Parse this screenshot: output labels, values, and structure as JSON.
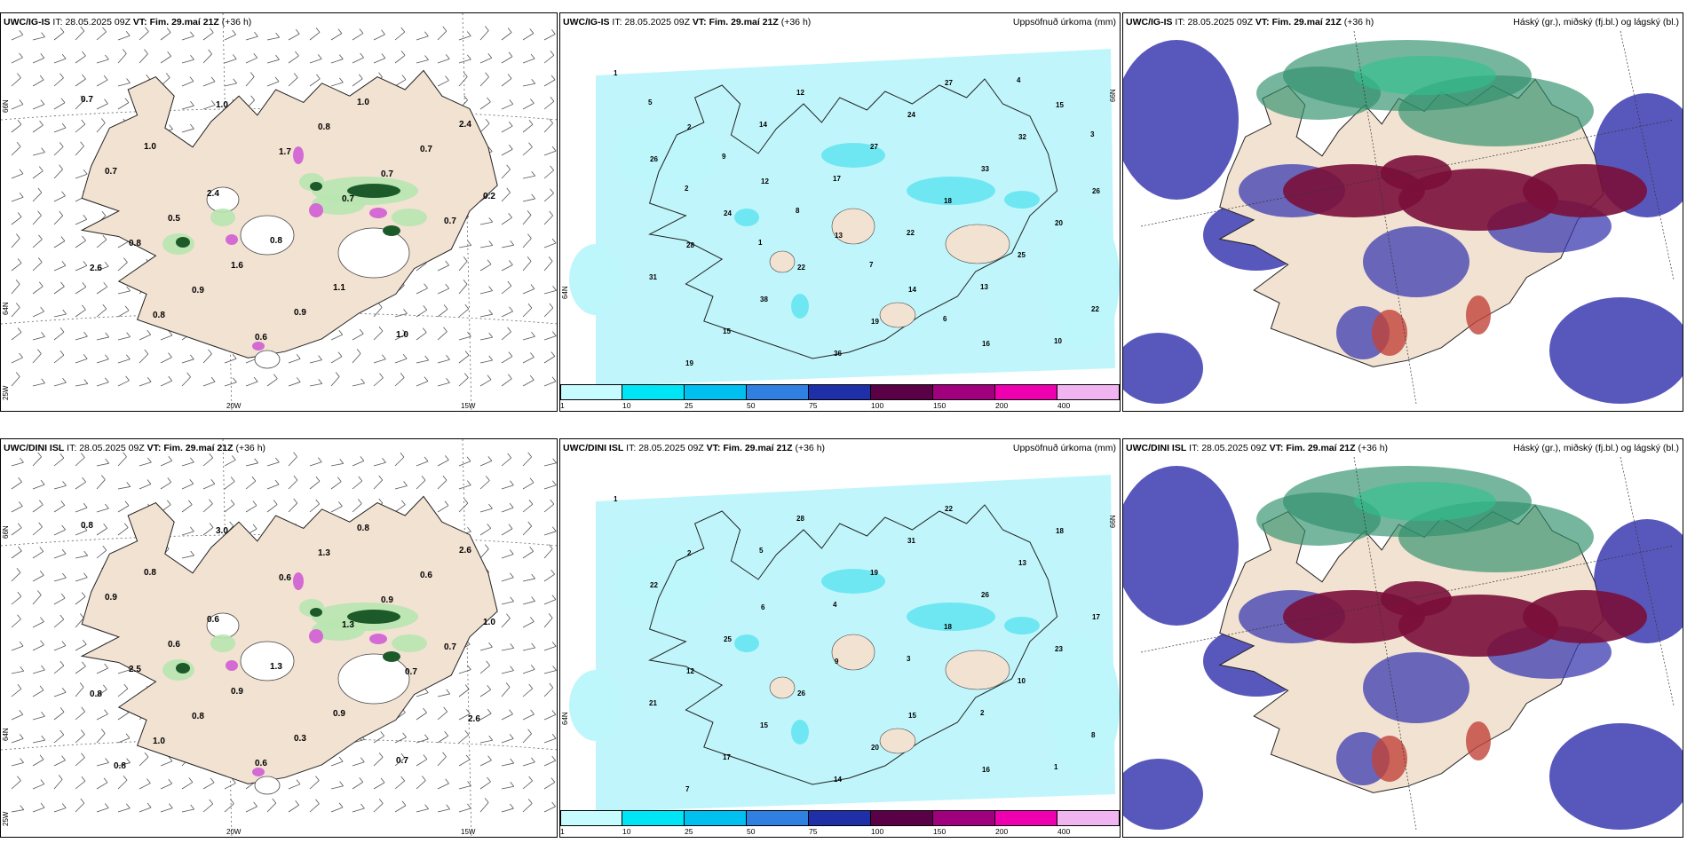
{
  "rows": [
    {
      "model": "UWC/IG-IS",
      "it_label": "IT:",
      "it_value": "28.05.2025 09Z",
      "vt_label": "VT:",
      "vt_value": "Fim. 29.maí 21Z",
      "lead": "(+36 h)"
    },
    {
      "model": "UWC/DINI ISL",
      "it_label": "IT:",
      "it_value": "28.05.2025 09Z",
      "vt_label": "VT:",
      "vt_value": "Fim. 29.maí 21Z",
      "lead": "(+36 h)"
    }
  ],
  "precip_title": "Uppsöfnuð úrkoma (mm)",
  "cloud_title": "Háský (gr.), miðský (fj.bl.) og lágský (bl.)",
  "lon_labels": [
    "20W",
    "15W"
  ],
  "lat_labels": [
    "66N",
    "64N",
    "25W"
  ],
  "precip_colorbar": {
    "ticks": [
      "1",
      "10",
      "25",
      "50",
      "75",
      "100",
      "150",
      "200",
      "400"
    ],
    "colors": [
      "#c6fbff",
      "#00e5f5",
      "#00c0ef",
      "#2f80e0",
      "#1f2fa8",
      "#5a0046",
      "#a0007e",
      "#ee00b0",
      "#f0b4f0"
    ]
  },
  "colors": {
    "land": "#f2e2d2",
    "sea": "#ffffff",
    "precip_light": "#bdf6fb",
    "high_cloud": "#2d8f6a",
    "mid_cloud": "#7a0f3a",
    "low_cloud": "#3b3bb0"
  },
  "wind_values_top": [
    "0.7",
    "1.0",
    "2.4",
    "0.8",
    "1.1",
    "1.0",
    "2.4",
    "0.7",
    "0.5",
    "1.6",
    "0.9",
    "1.0",
    "0.7",
    "0.2",
    "0.8",
    "0.9",
    "0.6",
    "0.8",
    "0.7",
    "0.7",
    "2.6",
    "0.8",
    "1.0",
    "1.7",
    "0.7"
  ],
  "wind_values_bottom": [
    "0.8",
    "0.8",
    "0.6",
    "1.3",
    "0.9",
    "0.7",
    "2.6",
    "0.9",
    "0.6",
    "0.9",
    "0.3",
    "0.8",
    "0.6",
    "1.0",
    "2.5",
    "0.8",
    "0.6",
    "1.3",
    "0.9",
    "0.7",
    "0.8",
    "1.0",
    "3.0",
    "0.6",
    "1.3",
    "0.7",
    "2.6",
    "0.8"
  ],
  "precip_values_top": [
    "1",
    "2",
    "12",
    "13",
    "14",
    "16",
    "15",
    "26",
    "24",
    "22",
    "19",
    "27",
    "32",
    "26",
    "28",
    "38",
    "36",
    "24",
    "33",
    "20",
    "31",
    "15",
    "12",
    "27",
    "18",
    "25",
    "22",
    "19",
    "14",
    "17",
    "22",
    "13",
    "10",
    "5",
    "9",
    "8",
    "7",
    "6",
    "4",
    "3",
    "2",
    "1"
  ],
  "precip_values_bottom": [
    "1",
    "2",
    "6",
    "9",
    "15",
    "16",
    "18",
    "22",
    "25",
    "26",
    "20",
    "22",
    "13",
    "17",
    "12",
    "15",
    "14",
    "31",
    "26",
    "23",
    "21",
    "17",
    "28",
    "19",
    "18",
    "10",
    "8",
    "7",
    "5",
    "4",
    "3",
    "2",
    "1"
  ]
}
